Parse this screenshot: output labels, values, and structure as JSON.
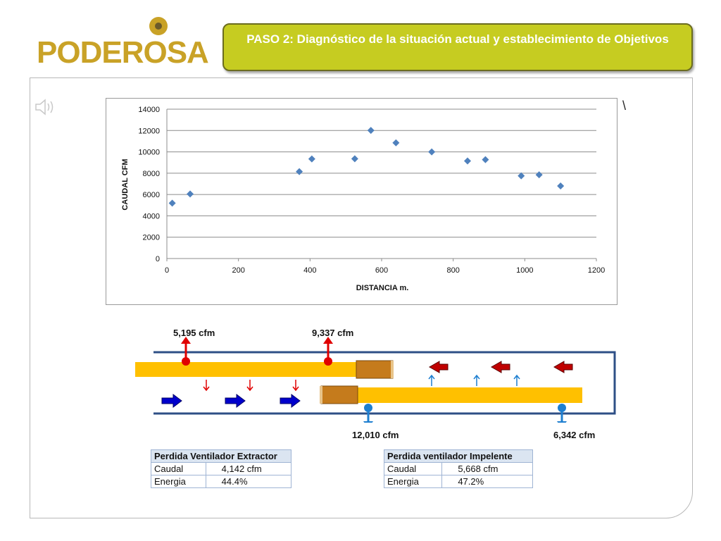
{
  "logo": {
    "text": "PODEROSA"
  },
  "header": {
    "title": "PASO 2: Diagnóstico de la situación actual y establecimiento de Objetivos"
  },
  "stray_mark": "\\",
  "chart_data": {
    "type": "scatter",
    "title": "",
    "xlabel": "DISTANCIA m.",
    "ylabel": "CAUDAL CFM",
    "xlim": [
      0,
      1200
    ],
    "ylim": [
      0,
      14000
    ],
    "xticks": [
      0,
      200,
      400,
      600,
      800,
      1000,
      1200
    ],
    "yticks": [
      0,
      2000,
      4000,
      6000,
      8000,
      10000,
      12000,
      14000
    ],
    "grid": "horizontal",
    "legend": "none",
    "marker": "diamond",
    "color": "#4f81bd",
    "x": [
      15,
      65,
      370,
      405,
      525,
      570,
      640,
      740,
      840,
      890,
      990,
      1040,
      1100
    ],
    "y": [
      5195,
      6050,
      8150,
      9337,
      9350,
      12010,
      10850,
      10000,
      9150,
      9270,
      7750,
      7850,
      6800
    ]
  },
  "diagram": {
    "labels": {
      "top_left": "5,195 cfm",
      "top_mid": "9,337 cfm",
      "bottom_mid": "12,010 cfm",
      "bottom_right": "6,342 cfm"
    },
    "colors": {
      "duct": "#ffc000",
      "tunnel": "#2e4f86",
      "red": "#e00000",
      "blue_arrow": "#0000cc",
      "dark_red_arrow": "#c00000",
      "light_blue": "#1e7fd0",
      "fan": "#c57b1c"
    }
  },
  "table_extractor": {
    "header": "Perdida Ventilador Extractor",
    "rows": [
      {
        "label": "Caudal",
        "value": "4,142 cfm"
      },
      {
        "label": "Energia",
        "value": "44.4%"
      }
    ]
  },
  "table_impeller": {
    "header": "Perdida ventilador Impelente",
    "rows": [
      {
        "label": "Caudal",
        "value": "5,668 cfm"
      },
      {
        "label": "Energia",
        "value": "47.2%"
      }
    ]
  }
}
